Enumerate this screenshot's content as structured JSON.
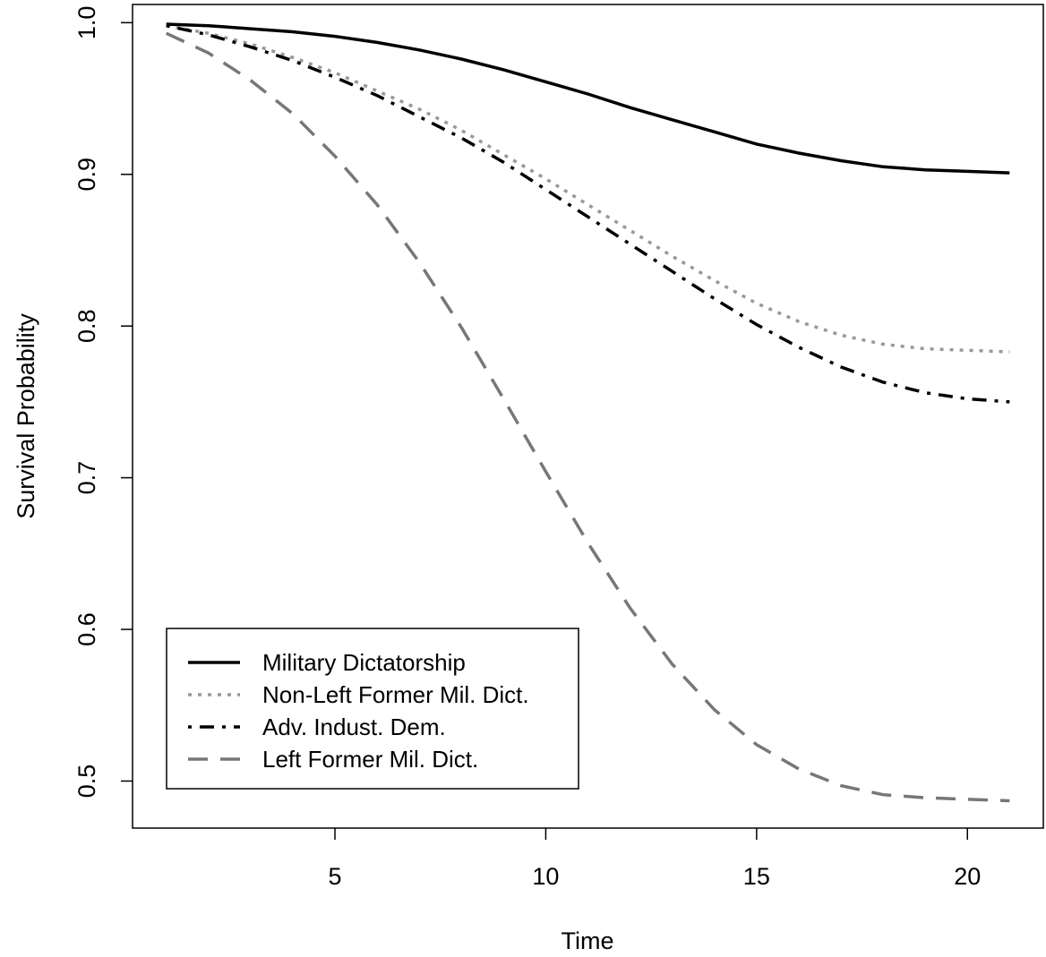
{
  "chart_data": {
    "type": "line",
    "title": "",
    "xlabel": "Time",
    "ylabel": "Survival Probability",
    "xlim": [
      0.2,
      21.8
    ],
    "ylim": [
      0.469,
      1.012
    ],
    "xticks": [
      5,
      10,
      15,
      20
    ],
    "yticks": [
      0.5,
      0.6,
      0.7,
      0.8,
      0.9,
      1.0
    ],
    "xtick_labels": [
      "5",
      "10",
      "15",
      "20"
    ],
    "ytick_labels": [
      "0.5",
      "0.6",
      "0.7",
      "0.8",
      "0.9",
      "1.0"
    ],
    "grid": false,
    "legend_position": "bottom-left",
    "x": [
      1,
      2,
      3,
      4,
      5,
      6,
      7,
      8,
      9,
      10,
      11,
      12,
      13,
      14,
      15,
      16,
      17,
      18,
      19,
      20,
      21
    ],
    "series": [
      {
        "name": "Military Dictatorship",
        "color": "#000000",
        "dash": "solid",
        "values": [
          0.999,
          0.998,
          0.996,
          0.994,
          0.991,
          0.987,
          0.982,
          0.976,
          0.969,
          0.961,
          0.953,
          0.944,
          0.936,
          0.928,
          0.92,
          0.914,
          0.909,
          0.905,
          0.903,
          0.902,
          0.901
        ]
      },
      {
        "name": "Non-Left Former Mil. Dict.",
        "color": "#999999",
        "dash": "dotted",
        "values": [
          0.998,
          0.993,
          0.986,
          0.977,
          0.967,
          0.955,
          0.943,
          0.929,
          0.913,
          0.897,
          0.88,
          0.863,
          0.846,
          0.83,
          0.815,
          0.803,
          0.794,
          0.788,
          0.785,
          0.784,
          0.783
        ]
      },
      {
        "name": "Adv. Indust. Dem.",
        "color": "#000000",
        "dash": "dotdash",
        "values": [
          0.998,
          0.992,
          0.984,
          0.975,
          0.964,
          0.952,
          0.938,
          0.924,
          0.908,
          0.89,
          0.872,
          0.854,
          0.836,
          0.818,
          0.801,
          0.786,
          0.773,
          0.763,
          0.756,
          0.752,
          0.75
        ]
      },
      {
        "name": "Left Former Mil. Dict.",
        "color": "#777777",
        "dash": "dashed",
        "values": [
          0.993,
          0.98,
          0.962,
          0.94,
          0.912,
          0.88,
          0.842,
          0.799,
          0.752,
          0.704,
          0.657,
          0.614,
          0.577,
          0.547,
          0.524,
          0.508,
          0.497,
          0.491,
          0.489,
          0.488,
          0.487
        ]
      }
    ]
  }
}
